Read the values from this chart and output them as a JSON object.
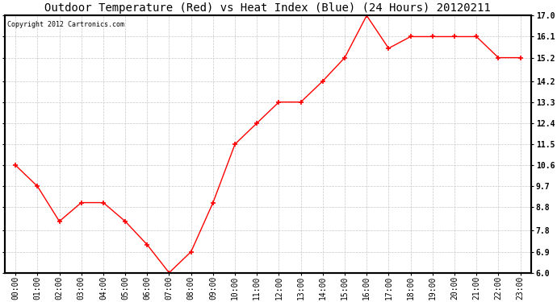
{
  "title": "Outdoor Temperature (Red) vs Heat Index (Blue) (24 Hours) 20120211",
  "copyright_text": "Copyright 2012 Cartronics.com",
  "hours": [
    "00:00",
    "01:00",
    "02:00",
    "03:00",
    "04:00",
    "05:00",
    "06:00",
    "07:00",
    "08:00",
    "09:00",
    "10:00",
    "11:00",
    "12:00",
    "13:00",
    "14:00",
    "15:00",
    "16:00",
    "17:00",
    "18:00",
    "19:00",
    "20:00",
    "21:00",
    "22:00",
    "23:00"
  ],
  "temp_values": [
    10.6,
    9.7,
    8.2,
    9.0,
    9.0,
    8.2,
    7.2,
    6.0,
    6.9,
    9.0,
    11.5,
    12.4,
    13.3,
    13.3,
    14.2,
    15.2,
    17.0,
    15.6,
    16.1,
    16.1,
    16.1,
    16.1,
    15.2,
    15.2
  ],
  "line_color": "#ff0000",
  "marker": "+",
  "marker_size": 4,
  "marker_edge_width": 1.2,
  "line_width": 1.0,
  "background_color": "#ffffff",
  "plot_bg_color": "#ffffff",
  "grid_color": "#c8c8c8",
  "ylim_min": 6.0,
  "ylim_max": 17.0,
  "ytick_values": [
    6.0,
    6.9,
    7.8,
    8.8,
    9.7,
    10.6,
    11.5,
    12.4,
    13.3,
    14.2,
    15.2,
    16.1,
    17.0
  ],
  "ytick_labels": [
    "6.0",
    "6.9",
    "7.8",
    "8.8",
    "9.7",
    "10.6",
    "11.5",
    "12.4",
    "13.3",
    "14.2",
    "15.2",
    "16.1",
    "17.0"
  ],
  "title_fontsize": 10,
  "copyright_fontsize": 6,
  "tick_fontsize": 7,
  "spine_color": "#000000",
  "spine_linewidth": 1.5
}
